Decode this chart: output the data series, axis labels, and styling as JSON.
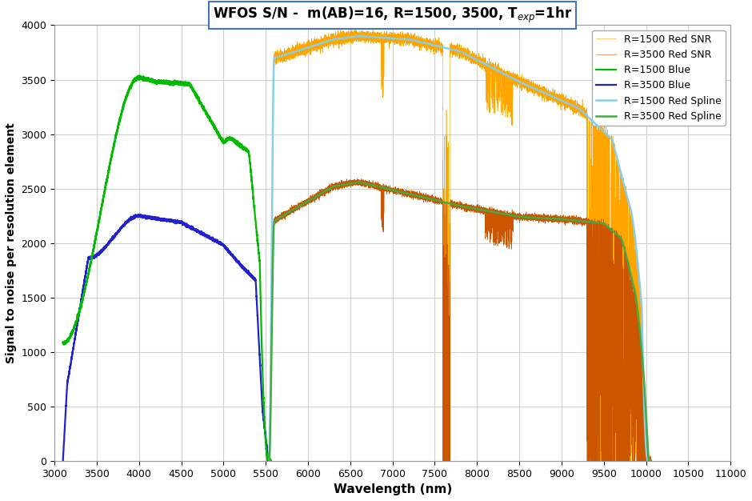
{
  "title": "WFOS S/N -  m(AB)=16, R=1500, 3500, T$_{exp}$=1hr",
  "xlabel": "Wavelength (nm)",
  "ylabel": "Signal to noise per resolution element",
  "xlim": [
    3000,
    11000
  ],
  "ylim": [
    0,
    4000
  ],
  "xticks": [
    3000,
    3500,
    4000,
    4500,
    5000,
    5500,
    6000,
    6500,
    7000,
    7500,
    8000,
    8500,
    9000,
    9500,
    10000,
    10500,
    11000
  ],
  "yticks": [
    0,
    500,
    1000,
    1500,
    2000,
    2500,
    3000,
    3500,
    4000
  ],
  "colors": {
    "r1500_blue": "#00BB00",
    "r1500_red_snr": "#FFA500",
    "r1500_red_spline": "#87CEEB",
    "r3500_blue": "#2222CC",
    "r3500_red_snr": "#CC5500",
    "r3500_red_spline": "#44AA44"
  },
  "legend_labels": [
    "R=1500 Blue",
    "R=1500 Red SNR",
    "R=1500 Red Spline",
    "R=3500 Blue",
    "R=3500 Red SNR",
    "R=3500 Red Spline"
  ],
  "background_color": "#ffffff",
  "plot_bg": "#ffffff",
  "grid_color": "#d0d0d0"
}
